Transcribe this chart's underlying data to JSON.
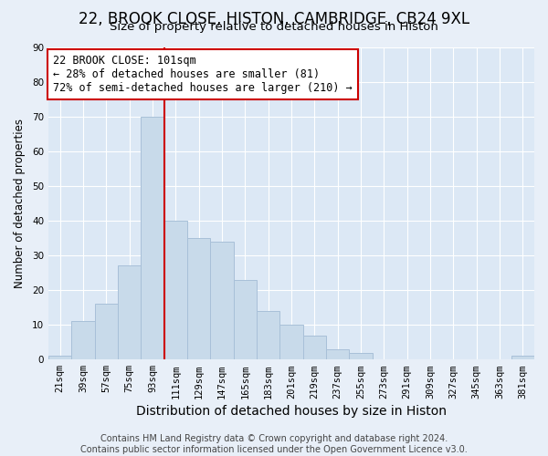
{
  "title": "22, BROOK CLOSE, HISTON, CAMBRIDGE, CB24 9XL",
  "subtitle": "Size of property relative to detached houses in Histon",
  "xlabel": "Distribution of detached houses by size in Histon",
  "ylabel": "Number of detached properties",
  "bar_labels": [
    "21sqm",
    "39sqm",
    "57sqm",
    "75sqm",
    "93sqm",
    "111sqm",
    "129sqm",
    "147sqm",
    "165sqm",
    "183sqm",
    "201sqm",
    "219sqm",
    "237sqm",
    "255sqm",
    "273sqm",
    "291sqm",
    "309sqm",
    "327sqm",
    "345sqm",
    "363sqm",
    "381sqm"
  ],
  "bar_values": [
    1,
    11,
    16,
    27,
    70,
    40,
    35,
    34,
    23,
    14,
    10,
    7,
    3,
    2,
    0,
    0,
    0,
    0,
    0,
    0,
    1
  ],
  "bar_color": "#c8daea",
  "bar_edge_color": "#a8c0d8",
  "vline_x": 4.5,
  "vline_color": "#cc0000",
  "annotation_line1": "22 BROOK CLOSE: 101sqm",
  "annotation_line2": "← 28% of detached houses are smaller (81)",
  "annotation_line3": "72% of semi-detached houses are larger (210) →",
  "annotation_fontsize": 8.5,
  "annotation_box_color": "#ffffff",
  "annotation_box_edge": "#cc0000",
  "ylim": [
    0,
    90
  ],
  "yticks": [
    0,
    10,
    20,
    30,
    40,
    50,
    60,
    70,
    80,
    90
  ],
  "footer1": "Contains HM Land Registry data © Crown copyright and database right 2024.",
  "footer2": "Contains public sector information licensed under the Open Government Licence v3.0.",
  "bg_color": "#e8eff8",
  "plot_bg_color": "#dce8f5",
  "grid_color": "#ffffff",
  "title_fontsize": 12,
  "subtitle_fontsize": 9.5,
  "xlabel_fontsize": 10,
  "ylabel_fontsize": 8.5,
  "tick_fontsize": 7.5,
  "footer_fontsize": 7
}
